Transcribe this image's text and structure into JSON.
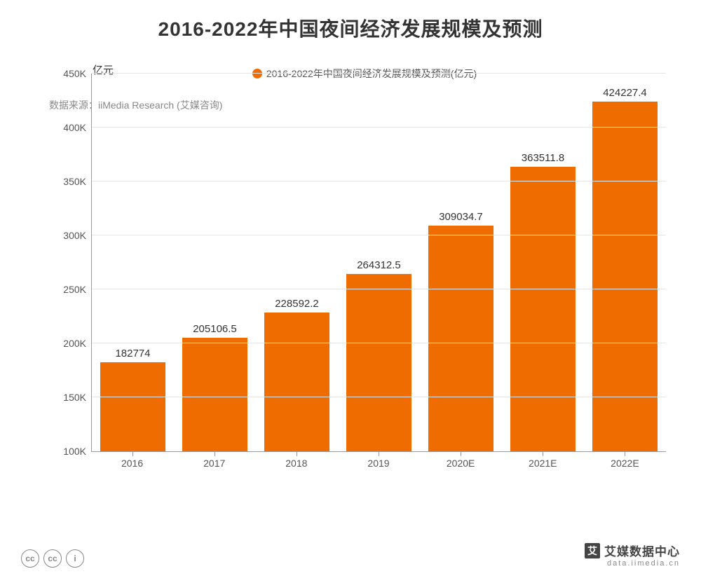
{
  "chart": {
    "type": "bar",
    "title": "2016-2022年中国夜间经济发展规模及预测",
    "title_fontsize": 28,
    "title_color": "#333333",
    "y_unit_label": "亿元",
    "y_unit_fontsize": 15,
    "categories": [
      "2016",
      "2017",
      "2018",
      "2019",
      "2020E",
      "2021E",
      "2022E"
    ],
    "values": [
      182774,
      205106.5,
      228592.2,
      264312.5,
      309034.7,
      363511.8,
      424227.4
    ],
    "value_labels": [
      "182774",
      "205106.5",
      "228592.2",
      "264312.5",
      "309034.7",
      "363511.8",
      "424227.4"
    ],
    "bar_color": "#ef6c00",
    "background_color": "#ffffff",
    "grid_color": "#e5e5e5",
    "axis_color": "#999999",
    "ylim": [
      100000,
      450000
    ],
    "ytick_step": 50000,
    "yticks": [
      "100K",
      "150K",
      "200K",
      "250K",
      "300K",
      "350K",
      "400K",
      "450K"
    ],
    "tick_label_color": "#555555",
    "tick_label_fontsize": 14,
    "value_label_fontsize": 15,
    "bar_width_ratio": 0.8,
    "legend_label": "2016-2022年中国夜间经济发展规模及预测(亿元)",
    "legend_swatch_color": "#ef6c00"
  },
  "source_label": "数据来源：iiMedia Research (艾媒咨询)",
  "footer": {
    "cc_icons": [
      "cc",
      "cc",
      "i"
    ],
    "brand_logo": "艾",
    "brand_name": "艾媒数据中心",
    "brand_url": "data.iimedia.cn"
  }
}
